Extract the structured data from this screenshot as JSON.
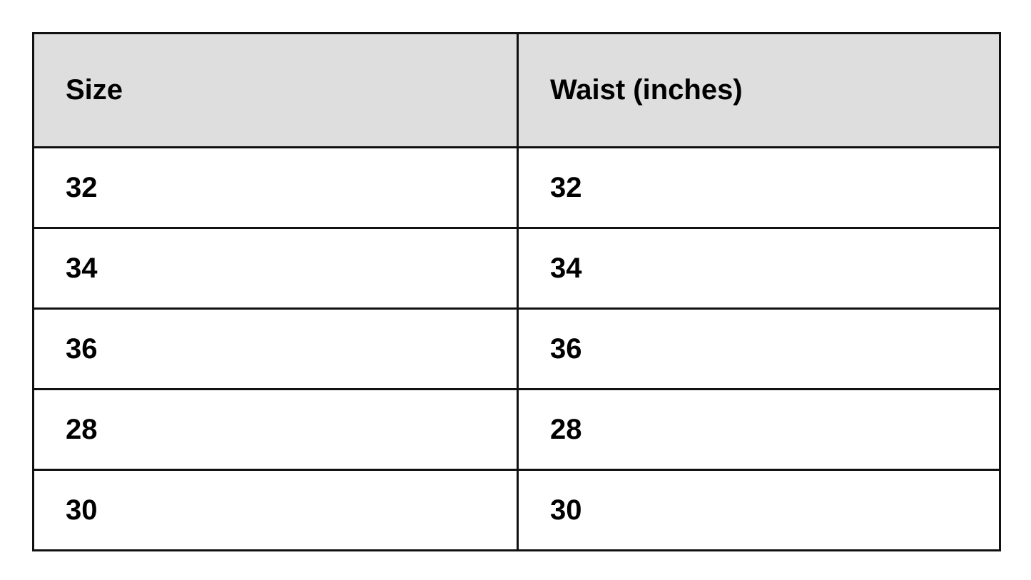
{
  "table": {
    "headers": [
      "Size",
      "Waist (inches)"
    ],
    "rows": [
      [
        "32",
        "32"
      ],
      [
        "34",
        "34"
      ],
      [
        "36",
        "36"
      ],
      [
        "28",
        "28"
      ],
      [
        "30",
        "30"
      ]
    ]
  },
  "colors": {
    "header_bg": "#dedede",
    "border": "#111111"
  }
}
